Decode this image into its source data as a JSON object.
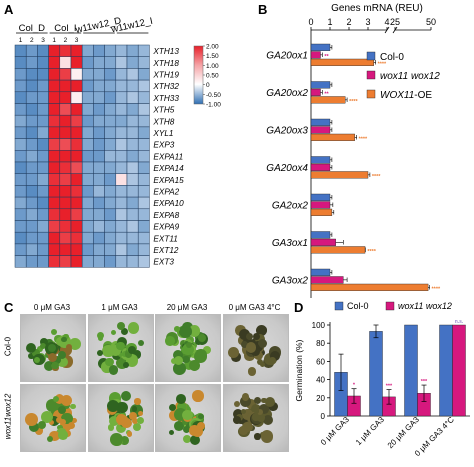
{
  "panels": {
    "A": {
      "letter": "A",
      "groups": [
        "Col_D",
        "Col_I",
        "w11w12_D",
        "w11w12_I"
      ],
      "replicates": [
        "1",
        "2",
        "3",
        "1",
        "2",
        "3"
      ],
      "genes": [
        "XTH13",
        "XTH18",
        "XTH19",
        "XTH32",
        "XTH33",
        "XTH5",
        "XTH8",
        "XYL1",
        "EXP3",
        "EXPA11",
        "EXPA14",
        "EXPA15",
        "EXPA2",
        "EXPA10",
        "EXPA8",
        "EXPA9",
        "EXT11",
        "EXT12",
        "EXT3"
      ],
      "colorbar_ticks": [
        "2.00",
        "1.50",
        "1.00",
        "0.50",
        "0",
        "-0.50",
        "-1.00"
      ],
      "colors": {
        "high": "#e8202a",
        "mid": "#ffffff",
        "low": "#2f6fb3"
      }
    },
    "B": {
      "letter": "B",
      "axis_title": "Genes mRNA (REU)",
      "legend": [
        "Col-0",
        "wox11 wox12",
        "WOX11-OE"
      ],
      "legend_colors": [
        "#4472c4",
        "#d6187e",
        "#ed7d31"
      ]
    },
    "C": {
      "letter": "C",
      "columns": [
        "0 μM GA3",
        "1 μM GA3",
        "20 μM GA3",
        "0 μM GA3 4°C"
      ],
      "rows": [
        "Col-0",
        "wox11wox12"
      ]
    },
    "D": {
      "letter": "D",
      "legend": [
        "Col-0",
        "wox11 wox12"
      ],
      "ns_label": "n.s."
    }
  },
  "chart_data": [
    {
      "type": "heatmap",
      "title": "",
      "columns": [
        "Col_D 1",
        "Col_D 2",
        "Col_D 3",
        "Col_I 1",
        "Col_I 2",
        "Col_I 3",
        "w11w12_D 1",
        "w11w12_D 2",
        "w11w12_D 3",
        "w11w12_I 1",
        "w11w12_I 2",
        "w11w12_I 3"
      ],
      "rows": [
        "XTH13",
        "XTH18",
        "XTH19",
        "XTH32",
        "XTH33",
        "XTH5",
        "XTH8",
        "XYL1",
        "EXP3",
        "EXPA11",
        "EXPA14",
        "EXPA15",
        "EXPA2",
        "EXPA10",
        "EXPA8",
        "EXPA9",
        "EXT11",
        "EXT12",
        "EXT3"
      ],
      "values": [
        [
          -0.8,
          -0.7,
          -0.8,
          1.7,
          1.4,
          1.6,
          -0.6,
          -0.7,
          -0.6,
          -0.5,
          -0.6,
          -0.5
        ],
        [
          -0.8,
          -0.7,
          -0.8,
          1.6,
          0.2,
          1.5,
          -0.7,
          -0.6,
          -0.6,
          -0.4,
          -0.6,
          -0.5
        ],
        [
          -0.7,
          -0.8,
          -0.8,
          1.5,
          1.3,
          0.1,
          -0.6,
          -0.6,
          -0.7,
          -0.5,
          -0.4,
          -0.6
        ],
        [
          -0.7,
          -0.8,
          -0.7,
          1.5,
          1.6,
          1.7,
          -0.7,
          -0.6,
          -0.6,
          -0.5,
          -0.5,
          -0.4
        ],
        [
          -0.8,
          -0.7,
          -0.7,
          1.6,
          1.5,
          0.1,
          -0.6,
          -0.6,
          -0.7,
          -0.5,
          -0.4,
          -0.5
        ],
        [
          -0.7,
          -0.8,
          -0.7,
          1.5,
          1.2,
          1.6,
          -0.6,
          -0.7,
          -0.6,
          -0.5,
          -0.6,
          -0.4
        ],
        [
          -0.6,
          -0.7,
          -0.7,
          1.4,
          1.6,
          1.3,
          -0.7,
          -0.6,
          -0.6,
          -0.6,
          -0.5,
          -0.5
        ],
        [
          -0.7,
          -0.8,
          -0.6,
          1.6,
          1.5,
          1.5,
          -0.6,
          -0.7,
          -0.6,
          -0.5,
          -0.5,
          -0.6
        ],
        [
          -0.6,
          -0.7,
          -0.8,
          1.3,
          1.2,
          1.4,
          -0.6,
          -0.7,
          -0.6,
          -0.4,
          -0.5,
          -0.5
        ],
        [
          -0.7,
          -0.6,
          -0.7,
          1.5,
          1.6,
          1.7,
          -0.7,
          -0.7,
          -0.5,
          -0.5,
          -0.6,
          -0.5
        ],
        [
          -0.8,
          -0.7,
          -0.7,
          1.5,
          1.4,
          1.2,
          -0.6,
          -0.6,
          -0.6,
          -0.5,
          -0.4,
          -0.6
        ],
        [
          -0.7,
          -0.7,
          -0.6,
          1.4,
          1.3,
          1.5,
          -0.6,
          -0.6,
          -0.7,
          0.2,
          -0.4,
          -0.5
        ],
        [
          -0.7,
          -0.8,
          -0.7,
          1.6,
          1.5,
          1.4,
          -0.7,
          -0.5,
          -0.6,
          -0.5,
          -0.5,
          -0.5
        ],
        [
          -0.6,
          -0.7,
          -0.8,
          1.5,
          1.6,
          1.5,
          -0.6,
          -0.7,
          -0.6,
          -0.5,
          -0.6,
          -0.4
        ],
        [
          -0.7,
          -0.6,
          -0.7,
          1.4,
          1.5,
          1.3,
          -0.6,
          -0.6,
          -0.7,
          -0.4,
          -0.5,
          -0.5
        ],
        [
          -0.7,
          -0.7,
          -0.6,
          1.3,
          1.4,
          1.6,
          -0.6,
          -0.5,
          -0.6,
          -0.5,
          -0.4,
          -0.6
        ],
        [
          -0.8,
          -0.7,
          -0.7,
          1.5,
          1.3,
          1.4,
          -0.6,
          -0.7,
          -0.6,
          -0.5,
          -0.5,
          -0.5
        ],
        [
          -0.7,
          -0.6,
          -0.7,
          1.6,
          1.5,
          1.5,
          -0.7,
          -0.6,
          -0.6,
          -0.4,
          -0.6,
          -0.5
        ],
        [
          -0.6,
          -0.7,
          -0.7,
          1.4,
          1.3,
          1.5,
          -0.6,
          -0.6,
          -0.7,
          -0.5,
          -0.5,
          -0.4
        ]
      ],
      "colorbar_range": [
        -1.0,
        2.0
      ]
    },
    {
      "type": "bar",
      "orientation": "horizontal",
      "title": "",
      "xlabel": "Genes mRNA (REU)",
      "x_ticks": [
        "0",
        "1",
        "2",
        "3",
        "4",
        "25",
        "50"
      ],
      "axis_break": [
        4,
        25
      ],
      "xlim": [
        0,
        50
      ],
      "categories": [
        "GA20ox1",
        "GA20ox2",
        "GA20ox3",
        "GA20ox4",
        "GA2ox2",
        "GA3ox1",
        "GA3ox2"
      ],
      "series": [
        {
          "name": "Col-0",
          "values": [
            1.0,
            1.0,
            1.0,
            1.0,
            1.0,
            1.0,
            1.0
          ],
          "errors": [
            0.1,
            0.1,
            0.1,
            0.1,
            0.1,
            0.1,
            0.1
          ]
        },
        {
          "name": "wox11 wox12",
          "values": [
            0.5,
            0.5,
            1.0,
            1.0,
            1.0,
            1.3,
            1.7
          ],
          "errors": [
            0.1,
            0.1,
            0.1,
            0.1,
            0.15,
            0.4,
            0.2
          ]
        },
        {
          "name": "WOX11-OE",
          "values": [
            3.3,
            1.8,
            2.3,
            3.0,
            1.1,
            4.2,
            48
          ],
          "errors": [
            0.1,
            0.1,
            0.1,
            0.1,
            0.1,
            0.2,
            1.0
          ]
        }
      ],
      "significance_marks": {
        "wox11 wox12": [
          "**",
          "**",
          "",
          "",
          "",
          "",
          ""
        ],
        "WOX11-OE": [
          "****",
          "****",
          "****",
          "****",
          "",
          "****",
          "****"
        ]
      }
    },
    {
      "type": "bar",
      "title": "",
      "ylabel": "Germination (%)",
      "ylim": [
        0,
        100
      ],
      "y_ticks": [
        "0",
        "20",
        "40",
        "60",
        "80",
        "100"
      ],
      "categories": [
        "0 μM GA3",
        "1 μM GA3",
        "20 μM GA3",
        "0 μM GA3 4°C"
      ],
      "series": [
        {
          "name": "Col-0",
          "values": [
            48,
            93,
            100,
            100
          ],
          "errors": [
            20,
            7,
            0,
            0
          ]
        },
        {
          "name": "wox11 wox12",
          "values": [
            22,
            21,
            25,
            100
          ],
          "errors": [
            8,
            8,
            9,
            0
          ]
        }
      ],
      "significance_marks": {
        "wox11 wox12": [
          "*",
          "***",
          "***",
          "n.s."
        ]
      }
    }
  ]
}
